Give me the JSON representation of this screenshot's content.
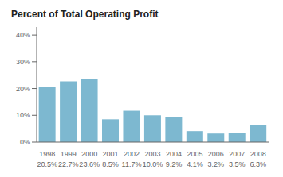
{
  "chart_data": {
    "type": "bar",
    "title": "Percent of Total Operating Profit",
    "categories": [
      "1998",
      "1999",
      "2000",
      "2001",
      "2002",
      "2003",
      "2004",
      "2005",
      "2006",
      "2007",
      "2008"
    ],
    "values": [
      20.5,
      22.7,
      23.6,
      8.5,
      11.7,
      10.0,
      9.2,
      4.1,
      3.2,
      3.5,
      6.3
    ],
    "value_labels": [
      "20.5%",
      "22.7%",
      "23.6%",
      "8.5%",
      "11.7%",
      "10.0%",
      "9.2%",
      "4.1%",
      "3.2%",
      "3.5%",
      "6.3%"
    ],
    "data_labels": true,
    "color": "#7db8d0",
    "ylim": [
      0,
      43
    ],
    "yticks": [
      {
        "value": 0,
        "label": "0%"
      },
      {
        "value": 10,
        "label": "10%"
      },
      {
        "value": 20,
        "label": "20%"
      },
      {
        "value": 30,
        "label": "30%"
      },
      {
        "value": 40,
        "label": "40%"
      }
    ],
    "grid": false
  }
}
